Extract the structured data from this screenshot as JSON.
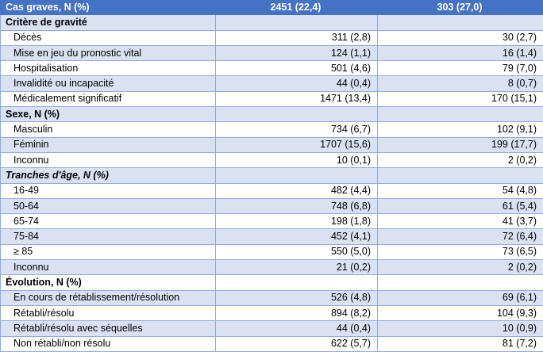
{
  "header": {
    "label": "Cas graves, N (%)",
    "col1": "2451 (22,4)",
    "col2": "303 (27,0)"
  },
  "sections": [
    {
      "title": "Critère de gravité",
      "rows": [
        {
          "label": "Décès",
          "v1": "311 (2,8)",
          "v2": "30 (2,7)"
        },
        {
          "label": "Mise en jeu du pronostic vital",
          "v1": "124 (1,1)",
          "v2": "16 (1,4)"
        },
        {
          "label": "Hospitalisation",
          "v1": "501 (4,6)",
          "v2": "79 (7,0)"
        },
        {
          "label": "Invalidité ou incapacité",
          "v1": "44 (0,4)",
          "v2": "8 (0,7)"
        },
        {
          "label": "Médicalement significatif",
          "v1": "1471 (13,4)",
          "v2": "170 (15,1)"
        }
      ]
    },
    {
      "title": "Sexe, N (%)",
      "rows": [
        {
          "label": "Masculin",
          "v1": "734 (6,7)",
          "v2": "102 (9,1)"
        },
        {
          "label": "Féminin",
          "v1": "1707 (15,6)",
          "v2": "199 (17,7)"
        },
        {
          "label": "Inconnu",
          "v1": "10 (0,1)",
          "v2": "2 (0,2)"
        }
      ]
    },
    {
      "title": "Tranches d'âge, N (%)",
      "rows": [
        {
          "label": "16-49",
          "v1": "482 (4,4)",
          "v2": "54 (4,8)"
        },
        {
          "label": "50-64",
          "v1": "748 (6,8)",
          "v2": "61 (5,4)"
        },
        {
          "label": "65-74",
          "v1": "198 (1,8)",
          "v2": "41 (3,7)"
        },
        {
          "label": "75-84",
          "v1": "452 (4,1)",
          "v2": "72 (6,4)"
        },
        {
          "label": "≥ 85",
          "v1": "550 (5,0)",
          "v2": "73 (6,5)"
        },
        {
          "label": "Inconnu",
          "v1": "21 (0,2)",
          "v2": "2 (0,2)"
        }
      ]
    },
    {
      "title": "Évolution, N (%)",
      "rows": [
        {
          "label": "En cours de rétablissement/résolution",
          "v1": "526 (4,8)",
          "v2": "69 (6,1)"
        },
        {
          "label": "Rétabli/résolu",
          "v1": "894 (8,2)",
          "v2": "104 (9,3)"
        },
        {
          "label": "Rétabli/résolu avec séquelles",
          "v1": "44 (0,4)",
          "v2": "10 (0,9)"
        },
        {
          "label": "Non rétabli/non résolu",
          "v1": "622 (5,7)",
          "v2": "81 (7,2)"
        }
      ]
    }
  ]
}
